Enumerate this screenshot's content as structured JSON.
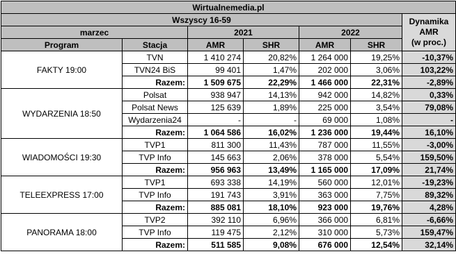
{
  "source": "Wirtualnemedia.pl",
  "target_group": "Wszyscy 16-59",
  "month": "marzec",
  "years": [
    "2021",
    "2022"
  ],
  "dynamics_header": [
    "Dynamika",
    "AMR",
    "(w proc.)"
  ],
  "col_headers": {
    "program": "Program",
    "station": "Stacja",
    "amr": "AMR",
    "shr": "SHR"
  },
  "groups": [
    {
      "program": "FAKTY 19:00",
      "rows": [
        {
          "station": "TVN",
          "amr_2021": "1 410 274",
          "shr_2021": "20,82%",
          "amr_2022": "1 264 000",
          "shr_2022": "19,25%",
          "dyn": "-10,37%"
        },
        {
          "station": "TVN24 BiS",
          "amr_2021": "99 401",
          "shr_2021": "1,47%",
          "amr_2022": "202 000",
          "shr_2022": "3,06%",
          "dyn": "103,22%"
        },
        {
          "station": "Razem:",
          "amr_2021": "1 509 675",
          "shr_2021": "22,29%",
          "amr_2022": "1 466 000",
          "shr_2022": "22,31%",
          "dyn": "-2,89%",
          "total": true
        }
      ]
    },
    {
      "program": "WYDARZENIA 18:50",
      "rows": [
        {
          "station": "Polsat",
          "amr_2021": "938 947",
          "shr_2021": "14,13%",
          "amr_2022": "942 000",
          "shr_2022": "14,82%",
          "dyn": "0,33%"
        },
        {
          "station": "Polsat News",
          "amr_2021": "125 639",
          "shr_2021": "1,89%",
          "amr_2022": "225 000",
          "shr_2022": "3,54%",
          "dyn": "79,08%"
        },
        {
          "station": "Wydarzenia24",
          "amr_2021": "-",
          "shr_2021": "-",
          "amr_2022": "69 000",
          "shr_2022": "1,08%",
          "dyn": "-"
        },
        {
          "station": "Razem:",
          "amr_2021": "1 064 586",
          "shr_2021": "16,02%",
          "amr_2022": "1 236 000",
          "shr_2022": "19,44%",
          "dyn": "16,10%",
          "total": true
        }
      ]
    },
    {
      "program": "WIADOMOŚCI 19:30",
      "rows": [
        {
          "station": "TVP1",
          "amr_2021": "811 300",
          "shr_2021": "11,43%",
          "amr_2022": "787 000",
          "shr_2022": "11,55%",
          "dyn": "-3,00%"
        },
        {
          "station": "TVP Info",
          "amr_2021": "145 663",
          "shr_2021": "2,06%",
          "amr_2022": "378 000",
          "shr_2022": "5,54%",
          "dyn": "159,50%"
        },
        {
          "station": "Razem:",
          "amr_2021": "956 963",
          "shr_2021": "13,49%",
          "amr_2022": "1 165 000",
          "shr_2022": "17,09%",
          "dyn": "21,74%",
          "total": true
        }
      ]
    },
    {
      "program": "TELEEXPRESS 17:00",
      "rows": [
        {
          "station": "TVP1",
          "amr_2021": "693 338",
          "shr_2021": "14,19%",
          "amr_2022": "560 000",
          "shr_2022": "12,01%",
          "dyn": "-19,23%"
        },
        {
          "station": "TVP Info",
          "amr_2021": "191 743",
          "shr_2021": "3,91%",
          "amr_2022": "363 000",
          "shr_2022": "7,75%",
          "dyn": "89,32%"
        },
        {
          "station": "Razem:",
          "amr_2021": "885 081",
          "shr_2021": "18,10%",
          "amr_2022": "923 000",
          "shr_2022": "19,76%",
          "dyn": "4,28%",
          "total": true
        }
      ]
    },
    {
      "program": "PANORAMA 18:00",
      "rows": [
        {
          "station": "TVP2",
          "amr_2021": "392 110",
          "shr_2021": "6,96%",
          "amr_2022": "366 000",
          "shr_2022": "6,81%",
          "dyn": "-6,66%"
        },
        {
          "station": "TVP Info",
          "amr_2021": "119 475",
          "shr_2021": "2,12%",
          "amr_2022": "310 000",
          "shr_2022": "5,73%",
          "dyn": "159,47%"
        },
        {
          "station": "Razem:",
          "amr_2021": "511 585",
          "shr_2021": "9,08%",
          "amr_2022": "676 000",
          "shr_2022": "12,54%",
          "dyn": "32,14%",
          "total": true
        }
      ]
    }
  ]
}
